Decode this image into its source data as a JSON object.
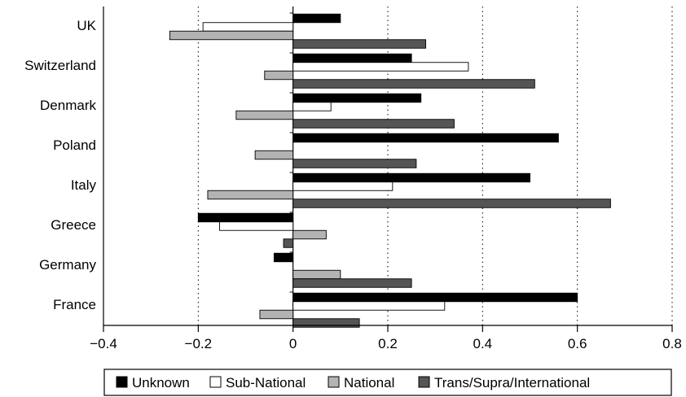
{
  "chart_data": {
    "type": "bar",
    "orientation": "horizontal",
    "categories": [
      "UK",
      "Switzerland",
      "Denmark",
      "Poland",
      "Italy",
      "Greece",
      "Germany",
      "France"
    ],
    "series": [
      {
        "name": "Unknown",
        "color": "#000000",
        "values": [
          0.1,
          0.25,
          0.27,
          0.56,
          0.5,
          -0.2,
          -0.04,
          0.6
        ]
      },
      {
        "name": "Sub-National",
        "color": "#ffffff",
        "values": [
          -0.19,
          0.37,
          0.08,
          0.0,
          0.21,
          -0.155,
          0.0,
          0.32
        ]
      },
      {
        "name": "National",
        "color": "#b3b3b3",
        "values": [
          -0.26,
          -0.06,
          -0.12,
          -0.08,
          -0.18,
          0.07,
          0.1,
          -0.07
        ]
      },
      {
        "name": "Trans/Supra/International",
        "color": "#555555",
        "values": [
          0.28,
          0.51,
          0.34,
          0.26,
          0.67,
          -0.02,
          0.25,
          0.14
        ]
      }
    ],
    "xlim": [
      -0.4,
      0.8
    ],
    "xticks": [
      -0.4,
      -0.2,
      0,
      0.2,
      0.4,
      0.6,
      0.8
    ],
    "xtick_labels": [
      "−0.4",
      "−0.2",
      "0",
      "0.2",
      "0.4",
      "0.6",
      "0.8"
    ],
    "grid": "vertical dotted",
    "legend_position": "bottom",
    "title": "",
    "xlabel": "",
    "ylabel": ""
  }
}
